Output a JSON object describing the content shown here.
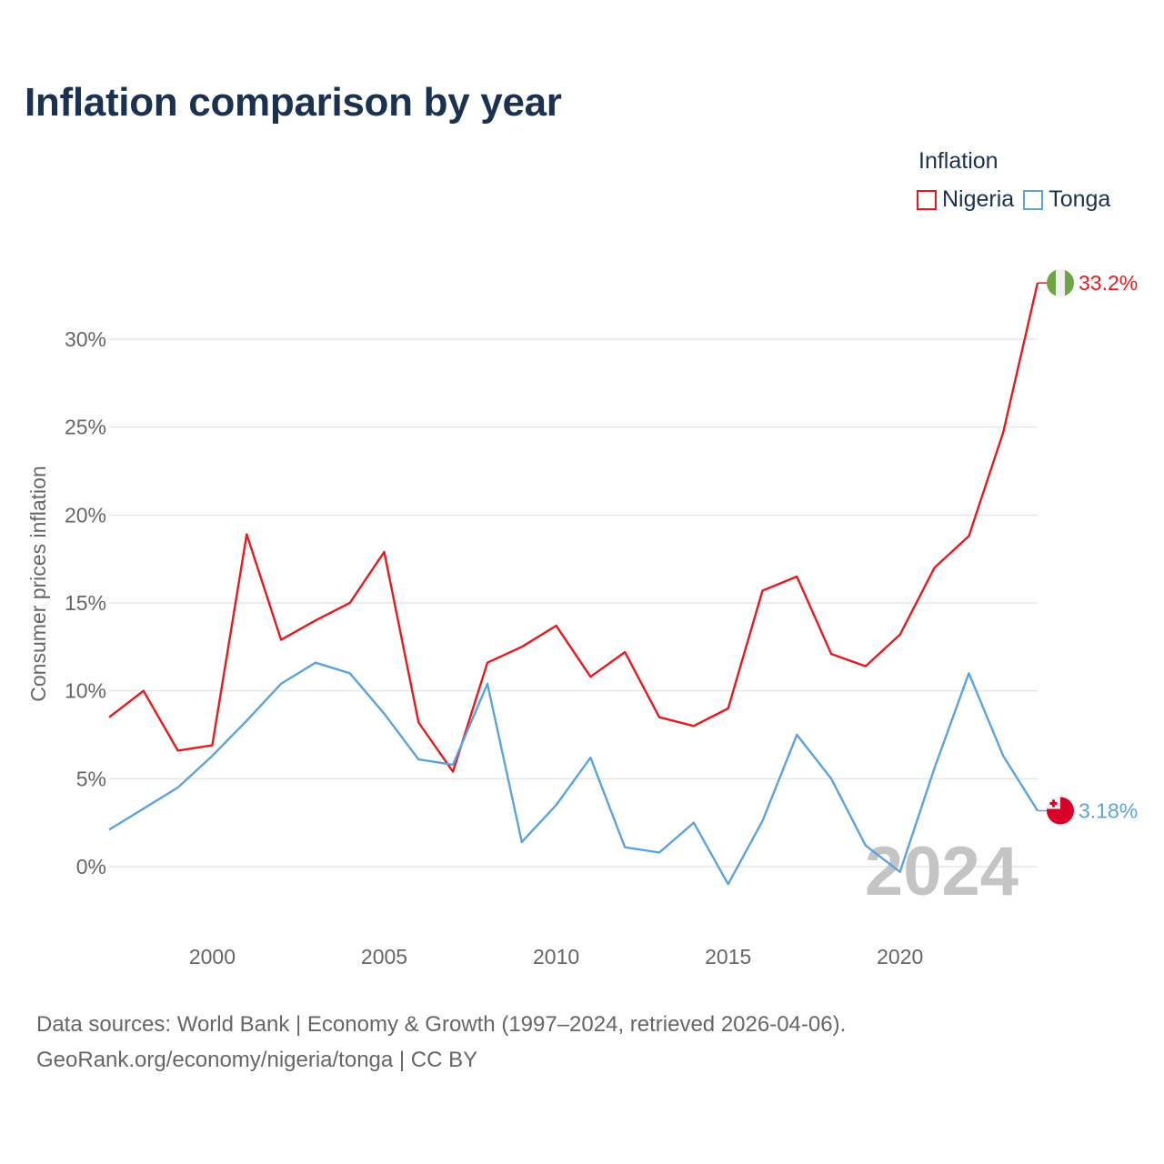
{
  "title": "Inflation comparison by year",
  "legend": {
    "title": "Inflation",
    "items": [
      {
        "label": "Nigeria",
        "color": "#e8191c"
      },
      {
        "label": "Tonga",
        "color": "#5aa3e0"
      }
    ]
  },
  "source": {
    "line1": "Data sources: World Bank | Economy & Growth (1997–2024, retrieved 2026-04-06).",
    "line2": "GeoRank.org/economy/nigeria/tonga | CC BY"
  },
  "chart_data": {
    "type": "line",
    "title": "Inflation comparison by year",
    "xlabel": "",
    "ylabel": "Consumer prices inflation",
    "x": [
      1997,
      1998,
      1999,
      2000,
      2001,
      2002,
      2003,
      2004,
      2005,
      2006,
      2007,
      2008,
      2009,
      2010,
      2011,
      2012,
      2013,
      2014,
      2015,
      2016,
      2017,
      2018,
      2019,
      2020,
      2021,
      2022,
      2023,
      2024
    ],
    "xlim": [
      1997,
      2024
    ],
    "ylim": [
      -3,
      33.5
    ],
    "xticks": [
      2000,
      2005,
      2010,
      2015,
      2020
    ],
    "yticks": [
      0,
      5,
      10,
      15,
      20,
      25,
      30
    ],
    "ytick_labels": [
      "0%",
      "5%",
      "10%",
      "15%",
      "20%",
      "25%",
      "30%"
    ],
    "year_watermark": "2024",
    "series": [
      {
        "name": "Nigeria",
        "color": "#e8191c",
        "end_label": "33.2%",
        "flag": "nigeria-flag",
        "values": [
          8.5,
          10.0,
          6.6,
          6.9,
          18.9,
          12.9,
          14.0,
          15.0,
          17.9,
          8.2,
          5.4,
          11.6,
          12.5,
          13.7,
          10.8,
          12.2,
          8.5,
          8.0,
          9.0,
          15.7,
          16.5,
          12.1,
          11.4,
          13.2,
          17.0,
          18.8,
          24.7,
          33.2
        ]
      },
      {
        "name": "Tonga",
        "color": "#5aa3e0",
        "end_label": "3.18%",
        "flag": "tonga-flag",
        "values": [
          2.1,
          3.3,
          4.5,
          6.3,
          8.3,
          10.4,
          11.6,
          11.0,
          8.7,
          6.1,
          5.8,
          10.4,
          1.4,
          3.5,
          6.2,
          1.1,
          0.8,
          2.5,
          -1.0,
          2.6,
          7.5,
          5.0,
          1.2,
          -0.3,
          5.6,
          11.0,
          6.3,
          3.18
        ]
      }
    ]
  }
}
